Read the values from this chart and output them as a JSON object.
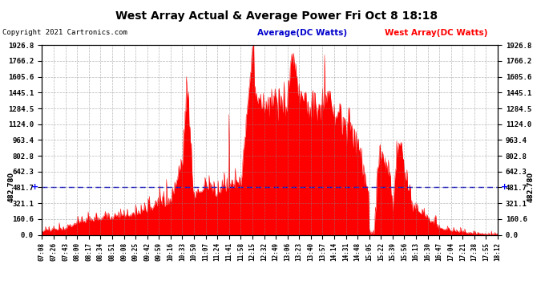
{
  "title": "West Array Actual & Average Power Fri Oct 8 18:18",
  "copyright": "Copyright 2021 Cartronics.com",
  "legend_average": "Average(DC Watts)",
  "legend_west": "West Array(DC Watts)",
  "average_value": 481.7,
  "ymax": 1926.8,
  "ymin": 0.0,
  "yticks": [
    0.0,
    160.6,
    321.1,
    481.7,
    642.3,
    802.8,
    963.4,
    1124.0,
    1284.5,
    1445.1,
    1605.6,
    1766.2,
    1926.8
  ],
  "bar_color": "#ff0000",
  "avg_line_color": "#0000cc",
  "background_color": "#ffffff",
  "grid_color": "#888888",
  "title_color": "#000000",
  "copyright_color": "#000000",
  "legend_avg_color": "#0000cc",
  "legend_west_color": "#ff0000",
  "xtick_labels": [
    "07:08",
    "07:26",
    "07:43",
    "08:00",
    "08:17",
    "08:34",
    "08:51",
    "09:08",
    "09:25",
    "09:42",
    "09:59",
    "10:16",
    "10:33",
    "10:50",
    "11:07",
    "11:24",
    "11:41",
    "11:58",
    "12:15",
    "12:32",
    "12:49",
    "13:06",
    "13:23",
    "13:40",
    "13:57",
    "14:14",
    "14:31",
    "14:48",
    "15:05",
    "15:22",
    "15:39",
    "15:56",
    "16:13",
    "16:30",
    "16:47",
    "17:04",
    "17:21",
    "17:38",
    "17:55",
    "18:12"
  ]
}
